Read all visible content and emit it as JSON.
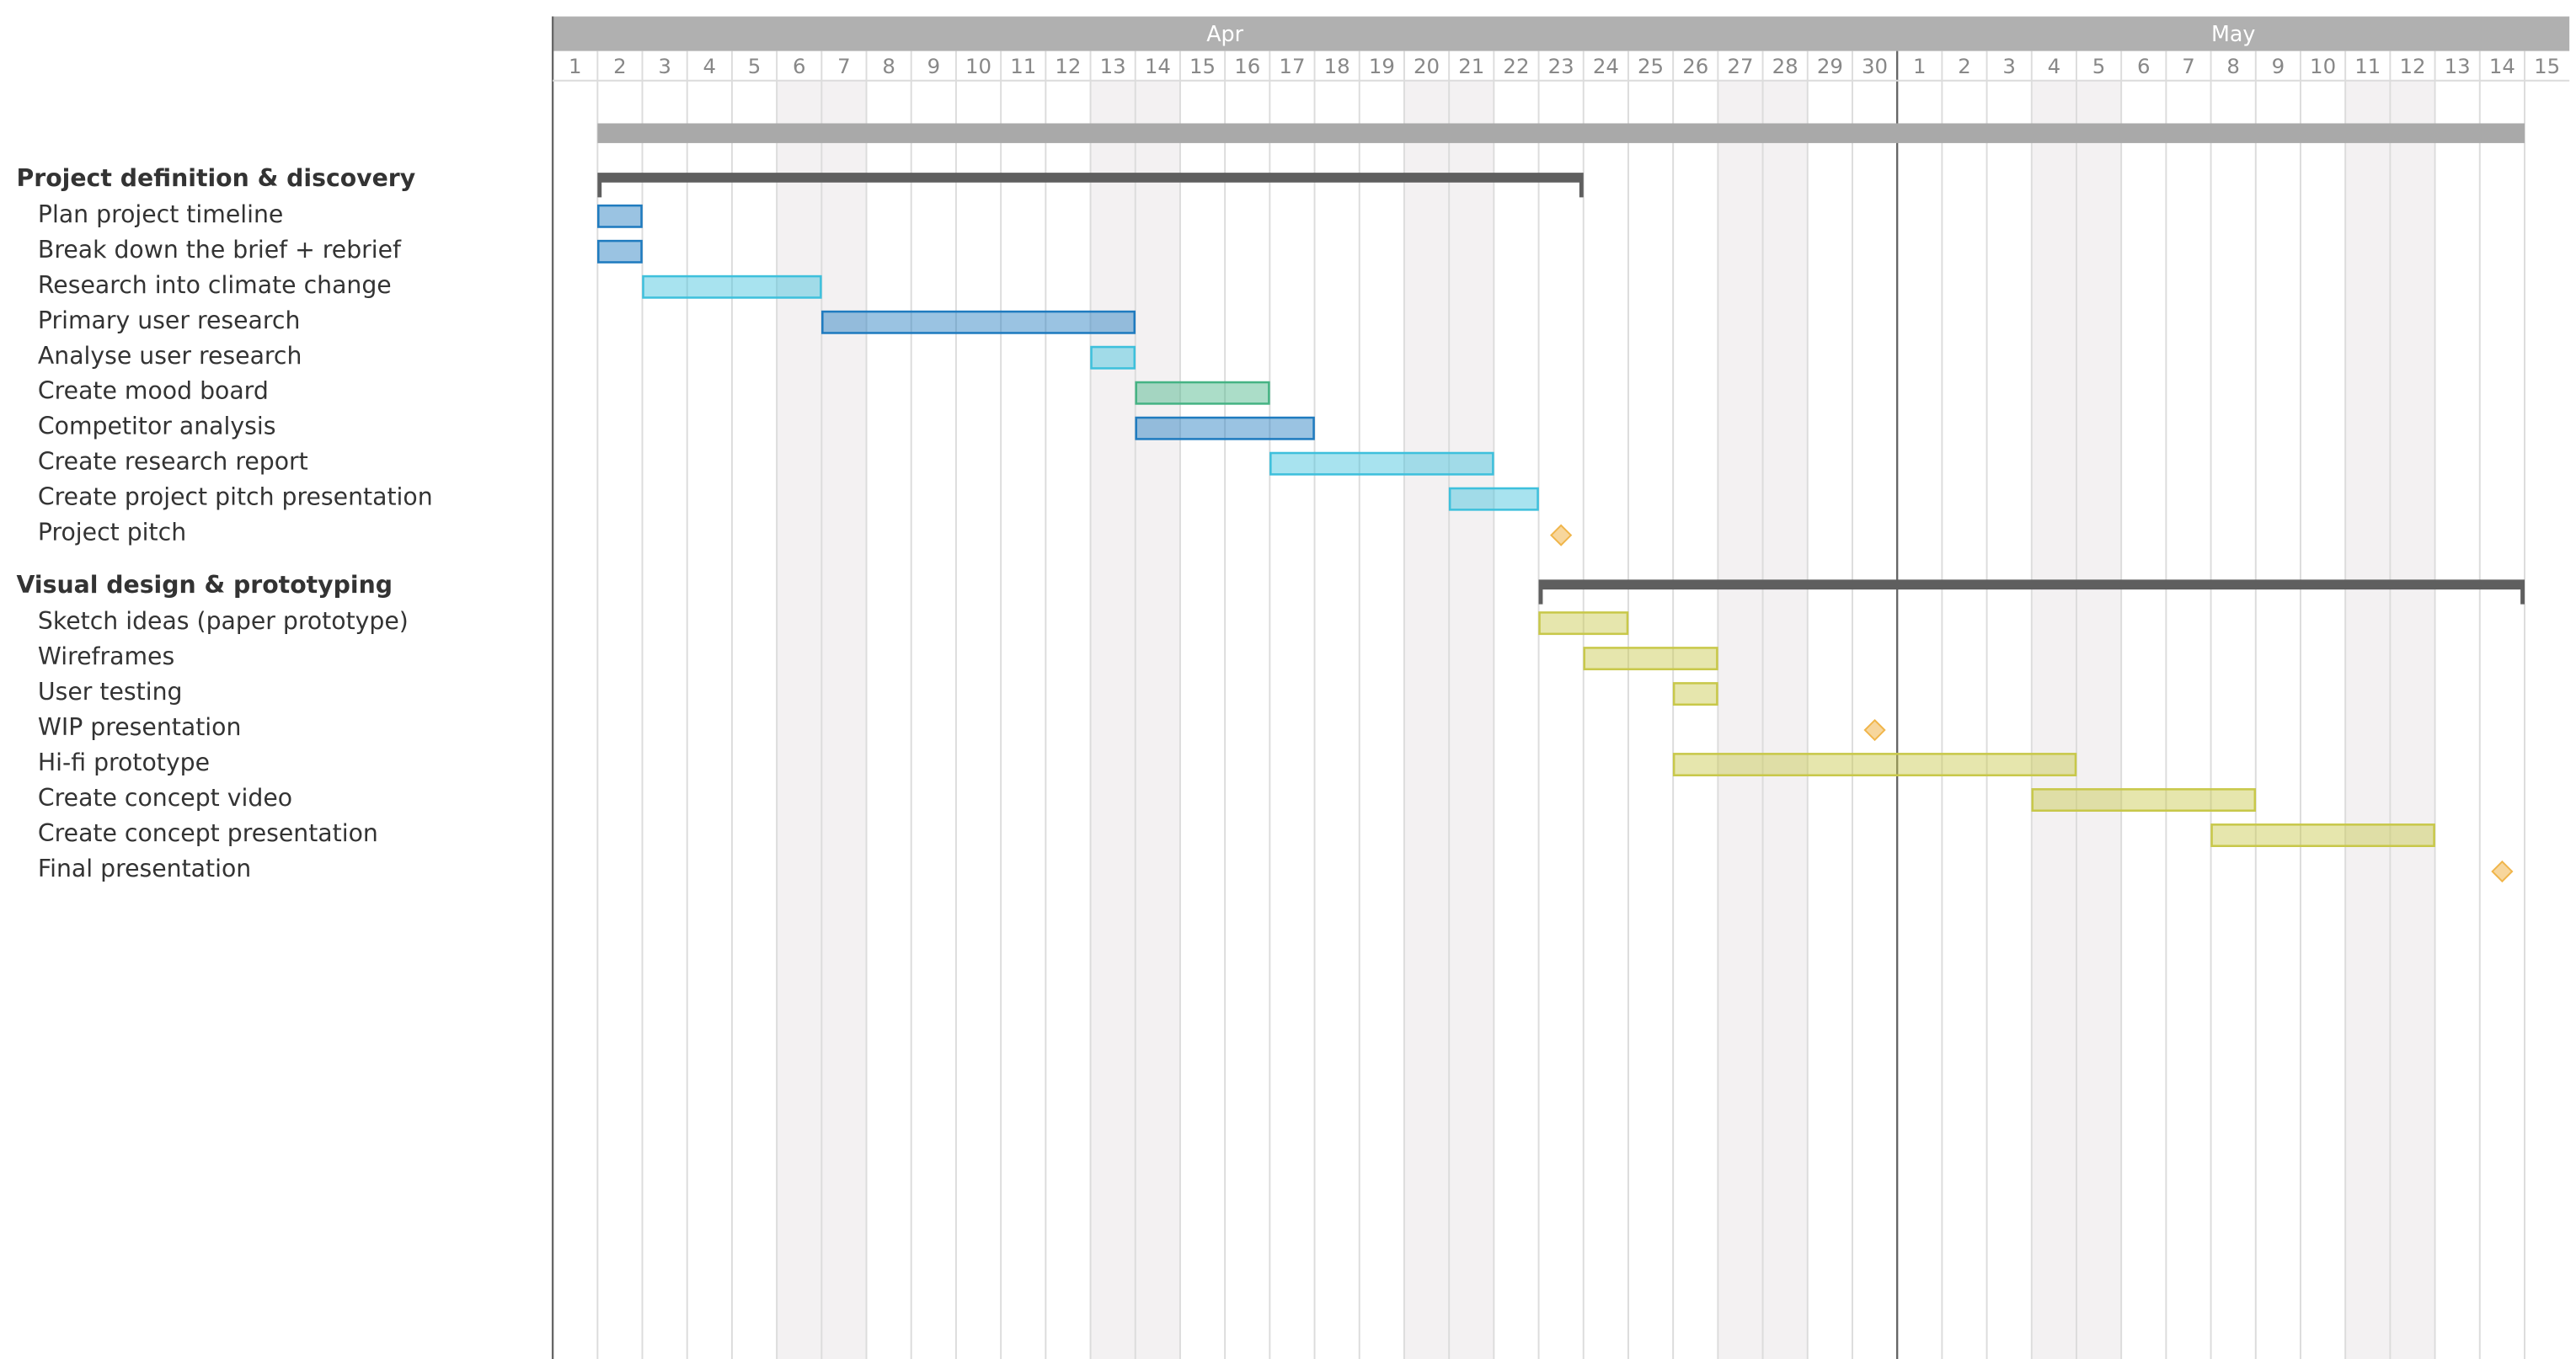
{
  "chart_data": {
    "type": "gantt",
    "months": [
      {
        "name": "Apr",
        "days": [
          1,
          2,
          3,
          4,
          5,
          6,
          7,
          8,
          9,
          10,
          11,
          12,
          13,
          14,
          15,
          16,
          17,
          18,
          19,
          20,
          21,
          22,
          23,
          24,
          25,
          26,
          27,
          28,
          29,
          30
        ]
      },
      {
        "name": "May",
        "days": [
          1,
          2,
          3,
          4,
          5,
          6,
          7,
          8,
          9,
          10,
          11,
          12,
          13,
          14,
          15
        ]
      }
    ],
    "shaded_days": [
      "Apr 6",
      "Apr 7",
      "Apr 13",
      "Apr 14",
      "Apr 20",
      "Apr 21",
      "Apr 27",
      "Apr 28",
      "May 4",
      "May 5",
      "May 11",
      "May 12"
    ],
    "overall": {
      "start": "Apr 2",
      "end": "May 14",
      "color": "#a9a9a9"
    },
    "summary_color": "#5f5f5f",
    "groups": [
      {
        "name": "Project definition & discovery",
        "start": "Apr 2",
        "end": "Apr 23",
        "tasks": [
          {
            "name": "Plan project timeline",
            "start": "Apr 2",
            "end": "Apr 2",
            "color": "#1f7bbf"
          },
          {
            "name": "Break down the brief + rebrief",
            "start": "Apr 2",
            "end": "Apr 2",
            "color": "#1f7bbf"
          },
          {
            "name": "Research into climate change",
            "start": "Apr 3",
            "end": "Apr 6",
            "color": "#3ec0dc"
          },
          {
            "name": "Primary user research",
            "start": "Apr 7",
            "end": "Apr 13",
            "color": "#1f7bbf"
          },
          {
            "name": "Analyse user research",
            "start": "Apr 13",
            "end": "Apr 13",
            "color": "#3ec0dc"
          },
          {
            "name": "Create mood board",
            "start": "Apr 14",
            "end": "Apr 16",
            "color": "#45b384"
          },
          {
            "name": "Competitor analysis",
            "start": "Apr 14",
            "end": "Apr 17",
            "color": "#1f7bbf"
          },
          {
            "name": "Create research report",
            "start": "Apr 17",
            "end": "Apr 21",
            "color": "#3ec0dc"
          },
          {
            "name": "Create project pitch presentation",
            "start": "Apr 21",
            "end": "Apr 22",
            "color": "#3ec0dc"
          },
          {
            "name": "Project pitch",
            "date": "Apr 23",
            "color": "#f0b54a"
          }
        ]
      },
      {
        "name": "Visual design & prototyping",
        "start": "Apr 23",
        "end": "May 14",
        "tasks": [
          {
            "name": "Sketch ideas (paper prototype)",
            "start": "Apr 23",
            "end": "Apr 24",
            "color": "#c8c84a"
          },
          {
            "name": "Wireframes",
            "start": "Apr 24",
            "end": "Apr 26",
            "color": "#c8c84a"
          },
          {
            "name": "User testing",
            "start": "Apr 26",
            "end": "Apr 26",
            "color": "#c8c84a"
          },
          {
            "name": "WIP presentation",
            "date": "Apr 30",
            "color": "#f0b54a"
          },
          {
            "name": "Hi-fi prototype",
            "start": "Apr 26",
            "end": "May 4",
            "color": "#c8c84a"
          },
          {
            "name": "Create concept video",
            "start": "May 4",
            "end": "May 8",
            "color": "#c8c84a"
          },
          {
            "name": "Create concept presentation",
            "start": "May 8",
            "end": "May 12",
            "color": "#c8c84a"
          },
          {
            "name": "Final presentation",
            "date": "May 14",
            "color": "#f0b54a"
          }
        ]
      }
    ]
  }
}
